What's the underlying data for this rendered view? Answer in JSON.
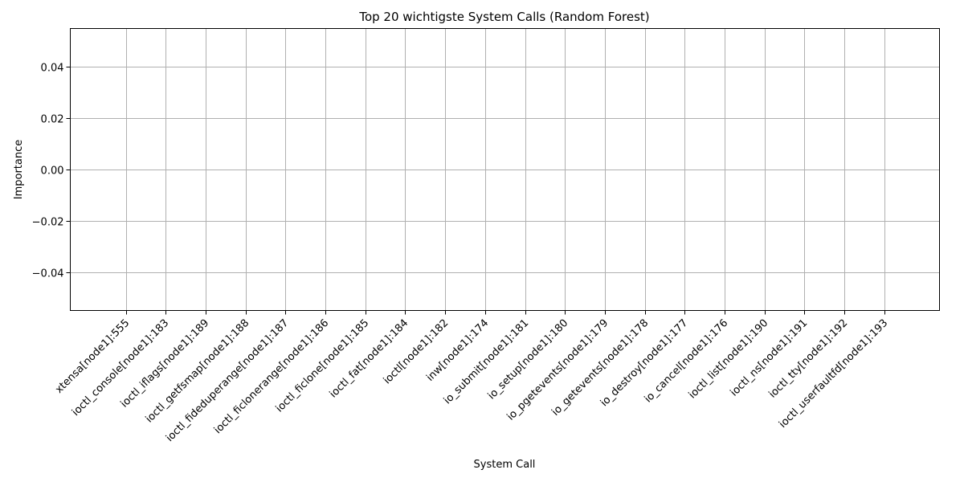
{
  "chart_data": {
    "type": "bar",
    "title": "Top 20 wichtigste System Calls (Random Forest)",
    "xlabel": "System Call",
    "ylabel": "Importance",
    "categories": [
      "xtensa[node1]:555",
      "ioctl_console[node1]:183",
      "ioctl_iflags[node1]:189",
      "ioctl_getfsmap[node1]:188",
      "ioctl_fideduperange[node1]:187",
      "ioctl_ficlonerange[node1]:186",
      "ioctl_ficlone[node1]:185",
      "ioctl_fat[node1]:184",
      "ioctl[node1]:182",
      "inw[node1]:174",
      "io_submit[node1]:181",
      "io_setup[node1]:180",
      "io_pgetevents[node1]:179",
      "io_getevents[node1]:178",
      "io_destroy[node1]:177",
      "io_cancel[node1]:176",
      "ioctl_list[node1]:190",
      "ioctl_ns[node1]:191",
      "ioctl_tty[node1]:192",
      "ioctl_userfaultfd[node1]:193"
    ],
    "values": [
      0,
      0,
      0,
      0,
      0,
      0,
      0,
      0,
      0,
      0,
      0,
      0,
      0,
      0,
      0,
      0,
      0,
      0,
      0,
      0
    ],
    "ylim": [
      -0.055,
      0.055
    ],
    "yticks": [
      -0.04,
      -0.02,
      0.0,
      0.02,
      0.04
    ],
    "ytick_labels": [
      "−0.04",
      "−0.02",
      "0.00",
      "0.02",
      "0.04"
    ],
    "grid": true
  }
}
